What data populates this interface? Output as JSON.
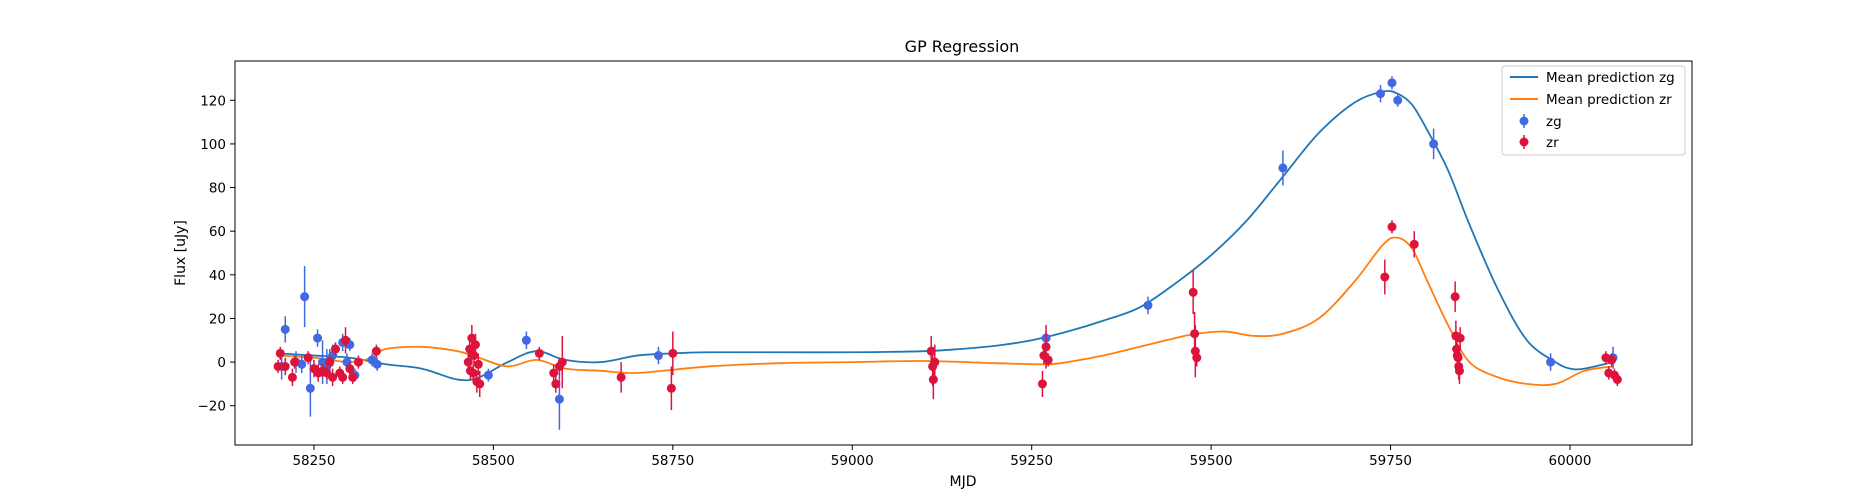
{
  "chart_data": {
    "type": "scatter",
    "title": "GP Regression",
    "xlabel": "MJD",
    "ylabel": "Flux [uJy]",
    "xlim": [
      58140,
      60170
    ],
    "ylim": [
      -38,
      138
    ],
    "xticks": [
      58250,
      58500,
      58750,
      59000,
      59250,
      59500,
      59750,
      60000
    ],
    "yticks": [
      -20,
      0,
      20,
      40,
      60,
      80,
      100,
      120
    ],
    "grid": false,
    "legend_position": "top-right",
    "lines": [
      {
        "name": "Mean prediction zg",
        "color": "#1f77b4",
        "x": [
          58200,
          58250,
          58300,
          58350,
          58400,
          58450,
          58480,
          58520,
          58560,
          58600,
          58650,
          58700,
          58750,
          58800,
          58900,
          59000,
          59100,
          59150,
          59200,
          59250,
          59300,
          59350,
          59400,
          59450,
          59500,
          59550,
          59600,
          59650,
          59700,
          59740,
          59760,
          59780,
          59800,
          59830,
          59860,
          59900,
          59940,
          59980,
          60000,
          60020,
          60060
        ],
        "y": [
          4,
          3,
          2,
          -1,
          -3,
          -8,
          -7,
          0,
          5,
          1,
          0,
          3,
          4,
          4.5,
          4.5,
          4.5,
          5,
          6,
          7.5,
          10,
          14,
          19,
          25,
          36,
          49,
          65,
          85,
          105,
          119,
          124,
          123,
          118,
          107,
          88,
          63,
          33,
          10,
          0,
          -3,
          -3,
          0
        ]
      },
      {
        "name": "Mean prediction zr",
        "color": "#ff7f0e",
        "x": [
          58200,
          58250,
          58300,
          58330,
          58350,
          58400,
          58450,
          58480,
          58520,
          58560,
          58600,
          58650,
          58700,
          58800,
          58900,
          59000,
          59100,
          59200,
          59270,
          59300,
          59350,
          59400,
          59450,
          59480,
          59520,
          59560,
          59600,
          59650,
          59700,
          59740,
          59760,
          59780,
          59800,
          59830,
          59860,
          59900,
          59940,
          59980,
          60020,
          60060
        ],
        "y": [
          3,
          2,
          0,
          2,
          6,
          7,
          5,
          2,
          -2,
          1,
          -3,
          -4,
          -5,
          -2,
          -0.5,
          0,
          0.5,
          -0.5,
          -1,
          0,
          3,
          7,
          11,
          13,
          14,
          12,
          13,
          20,
          37,
          54,
          57,
          52,
          38,
          17,
          0,
          -7,
          -10,
          -10,
          -4,
          -2
        ]
      }
    ],
    "series": [
      {
        "name": "zg",
        "color": "#4169e1",
        "x": [
          58205,
          58210,
          58225,
          58233,
          58237,
          58245,
          58255,
          58262,
          58268,
          58272,
          58276,
          58280,
          58290,
          58296,
          58300,
          58307,
          58331,
          58338,
          58493,
          58546,
          58592,
          58730,
          59270,
          59412,
          59600,
          59736,
          59752,
          59760,
          59810,
          59973,
          60060
        ],
        "y": [
          -2,
          15,
          0,
          -1,
          30,
          -12,
          11,
          0,
          -2,
          1,
          3,
          6,
          9,
          0,
          8,
          -6,
          1,
          -1,
          -6,
          10,
          -17,
          3,
          11,
          26,
          89,
          123,
          128,
          120,
          100,
          0,
          2
        ],
        "err": [
          6,
          6,
          5,
          4,
          14,
          13,
          4,
          10,
          8,
          5,
          5,
          3,
          4,
          4,
          3,
          3,
          3,
          3,
          3,
          4,
          14,
          4,
          3,
          4,
          8,
          4,
          3,
          3,
          7,
          4,
          5
        ]
      },
      {
        "name": "zr",
        "color": "#dc143c",
        "x": [
          58200,
          58203,
          58210,
          58220,
          58223,
          58242,
          58250,
          58256,
          58262,
          58268,
          58272,
          58276,
          58280,
          58286,
          58290,
          58294,
          58300,
          58304,
          58312,
          58337,
          58465,
          58467,
          58468,
          58470,
          58472,
          58473,
          58475,
          58477,
          58479,
          58481,
          58564,
          58584,
          58587,
          58592,
          58596,
          58678,
          58748,
          58750,
          59110,
          59112,
          59113,
          59115,
          59265,
          59267,
          59270,
          59273,
          59475,
          59477,
          59478,
          59480,
          59742,
          59752,
          59783,
          59840,
          59841,
          59842,
          59843,
          59844,
          59845,
          59846,
          59847,
          60050,
          60054,
          60058,
          60062,
          60066
        ],
        "y": [
          -2,
          4,
          -2,
          -7,
          0,
          2,
          -3,
          -5,
          -4,
          -5,
          0,
          -7,
          6,
          -5,
          -7,
          10,
          -3,
          -7,
          0,
          5,
          0,
          6,
          -4,
          11,
          -5,
          3,
          8,
          -9,
          -1,
          -10,
          4,
          -5,
          -10,
          -2,
          0,
          -7,
          -12,
          4,
          5,
          -2,
          -8,
          0,
          -10,
          3,
          7,
          1,
          32,
          13,
          5,
          2,
          39,
          62,
          54,
          30,
          12,
          6,
          3,
          2,
          -2,
          -4,
          11,
          2,
          -5,
          1,
          -6,
          -8
        ],
        "err": [
          3,
          3,
          4,
          4,
          3,
          3,
          4,
          4,
          3,
          3,
          3,
          4,
          3,
          3,
          3,
          6,
          3,
          3,
          3,
          3,
          4,
          4,
          4,
          6,
          4,
          4,
          5,
          5,
          5,
          6,
          3,
          4,
          4,
          4,
          12,
          7,
          10,
          10,
          7,
          9,
          9,
          8,
          6,
          4,
          10,
          3,
          10,
          10,
          12,
          4,
          8,
          3,
          6,
          7,
          7,
          5,
          5,
          5,
          6,
          6,
          5,
          3,
          3,
          3,
          3,
          3
        ]
      }
    ]
  }
}
